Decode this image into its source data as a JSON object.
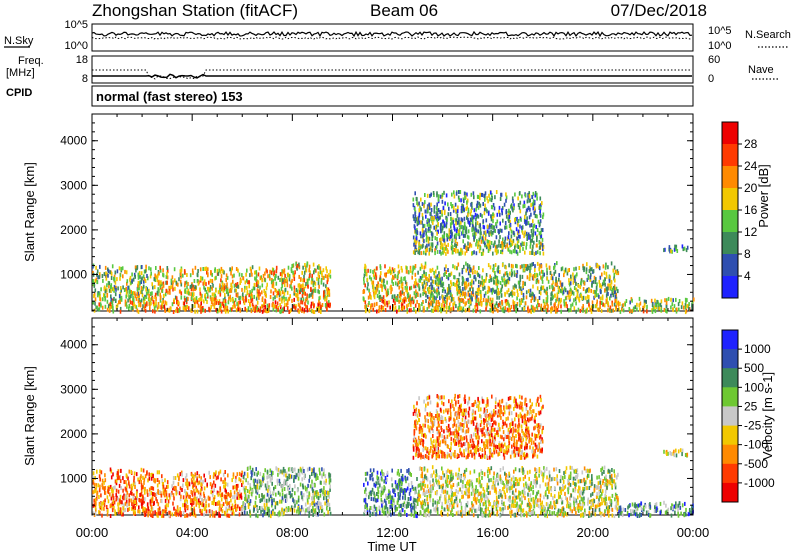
{
  "header": {
    "station": "Zhongshan Station (fitACF)",
    "beam": "Beam 06",
    "date": "07/Dec/2018"
  },
  "noise_panel": {
    "left_label": "N.Sky",
    "right_label": "N.Search",
    "left_ticks": [
      "10^5",
      "10^0"
    ],
    "right_ticks": [
      "10^5",
      "10^0"
    ]
  },
  "freq_panel": {
    "label_line1": "Freq.",
    "label_line2": "[MHz]",
    "left_ticks": [
      "18",
      "8"
    ],
    "right_ticks": [
      "60",
      "0"
    ],
    "right_label": "Nave",
    "cpid_label": "CPID",
    "cpid_text": "normal (fast stereo) 153"
  },
  "colors": {
    "power_scale": [
      "#1f22ff",
      "#2f4fb0",
      "#3d8a5a",
      "#58c840",
      "#f2c800",
      "#ff8a00",
      "#ff3a00",
      "#ee0000"
    ],
    "velocity_scale": [
      "#ee0000",
      "#ff3a00",
      "#ff8a00",
      "#f2c800",
      "#c8c8c8",
      "#6ec832",
      "#3d8a5a",
      "#2f4fb0",
      "#1f22ff"
    ],
    "ground_scatter": "#c0c0c0"
  },
  "chart_data": [
    {
      "type": "heatmap",
      "title": "Power",
      "ylabel": "Slant Range [km]",
      "xlabel": "",
      "ylim": [
        180,
        4600
      ],
      "yticks": [
        "1000",
        "2000",
        "3000",
        "4000"
      ],
      "x_range_hours": [
        0,
        24
      ],
      "colorbar": {
        "label": "Power [dB]",
        "range": [
          0,
          32
        ],
        "ticks": [
          "4",
          "8",
          "12",
          "16",
          "20",
          "24",
          "28"
        ]
      },
      "echo_regions": [
        {
          "start_hour": 0.0,
          "end_hour": 2.3,
          "range_from_km": 200,
          "range_to_km": 1250,
          "typical_db": 14
        },
        {
          "start_hour": 2.3,
          "end_hour": 6.0,
          "range_from_km": 200,
          "range_to_km": 1200,
          "typical_db": 18
        },
        {
          "start_hour": 6.0,
          "end_hour": 9.5,
          "range_from_km": 200,
          "range_to_km": 1300,
          "typical_db": 18
        },
        {
          "start_hour": 10.8,
          "end_hour": 13.0,
          "range_from_km": 200,
          "range_to_km": 1250,
          "typical_db": 16
        },
        {
          "start_hour": 13.0,
          "end_hour": 21.0,
          "range_from_km": 200,
          "range_to_km": 1300,
          "typical_db": 14
        },
        {
          "start_hour": 21.0,
          "end_hour": 24.0,
          "range_from_km": 200,
          "range_to_km": 500,
          "typical_db": 12
        },
        {
          "start_hour": 12.8,
          "end_hour": 18.0,
          "range_from_km": 1500,
          "range_to_km": 2900,
          "typical_db": 10
        },
        {
          "start_hour": 22.8,
          "end_hour": 23.8,
          "range_from_km": 1550,
          "range_to_km": 1700,
          "typical_db": 6
        }
      ]
    },
    {
      "type": "heatmap",
      "title": "Velocity",
      "ylabel": "Slant Range [km]",
      "xlabel": "Time UT",
      "ylim": [
        180,
        4600
      ],
      "yticks": [
        "1000",
        "2000",
        "3000",
        "4000"
      ],
      "xticks": [
        "00:00",
        "04:00",
        "08:00",
        "12:00",
        "16:00",
        "20:00",
        "00:00"
      ],
      "x_range_hours": [
        0,
        24
      ],
      "colorbar": {
        "label": "Velocity [m s-1]",
        "ticks": [
          "1000",
          "500",
          "100",
          "25",
          "-25",
          "-100",
          "-500",
          "-1000"
        ]
      },
      "echo_regions": [
        {
          "start_hour": 0.0,
          "end_hour": 2.3,
          "range_from_km": 200,
          "range_to_km": 1250,
          "typical_ms": -300
        },
        {
          "start_hour": 2.3,
          "end_hour": 6.0,
          "range_from_km": 200,
          "range_to_km": 1200,
          "typical_ms": -400
        },
        {
          "start_hour": 6.0,
          "end_hour": 9.5,
          "range_from_km": 200,
          "range_to_km": 1300,
          "typical_ms": 80
        },
        {
          "start_hour": 10.8,
          "end_hour": 13.0,
          "range_from_km": 200,
          "range_to_km": 1250,
          "typical_ms": 150
        },
        {
          "start_hour": 13.0,
          "end_hour": 21.0,
          "range_from_km": 200,
          "range_to_km": 1300,
          "typical_ms": 0
        },
        {
          "start_hour": 21.0,
          "end_hour": 24.0,
          "range_from_km": 200,
          "range_to_km": 500,
          "typical_ms": 200
        },
        {
          "start_hour": 12.8,
          "end_hour": 18.0,
          "range_from_km": 1500,
          "range_to_km": 2900,
          "typical_ms": -200
        },
        {
          "start_hour": 22.8,
          "end_hour": 23.8,
          "range_from_km": 1550,
          "range_to_km": 1700,
          "typical_ms": 0
        }
      ]
    }
  ]
}
